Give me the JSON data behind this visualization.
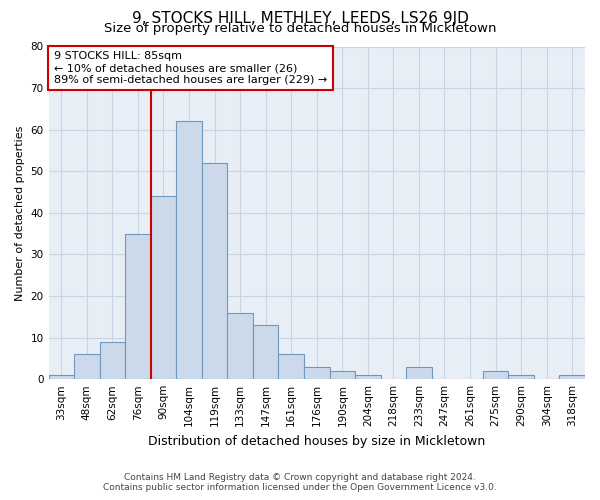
{
  "title": "9, STOCKS HILL, METHLEY, LEEDS, LS26 9JD",
  "subtitle": "Size of property relative to detached houses in Mickletown",
  "xlabel": "Distribution of detached houses by size in Mickletown",
  "ylabel": "Number of detached properties",
  "categories": [
    "33sqm",
    "48sqm",
    "62sqm",
    "76sqm",
    "90sqm",
    "104sqm",
    "119sqm",
    "133sqm",
    "147sqm",
    "161sqm",
    "176sqm",
    "190sqm",
    "204sqm",
    "218sqm",
    "233sqm",
    "247sqm",
    "261sqm",
    "275sqm",
    "290sqm",
    "304sqm",
    "318sqm"
  ],
  "values": [
    1,
    6,
    9,
    35,
    44,
    62,
    52,
    16,
    13,
    6,
    3,
    2,
    1,
    0,
    3,
    0,
    0,
    2,
    1,
    0,
    1
  ],
  "bar_color": "#ccd9ea",
  "bar_edge_color": "#7097bc",
  "red_line_color": "#cc0000",
  "annotation_box_edge": "#cc0000",
  "annotation_line1": "9 STOCKS HILL: 85sqm",
  "annotation_line2": "← 10% of detached houses are smaller (26)",
  "annotation_line3": "89% of semi-detached houses are larger (229) →",
  "ylim": [
    0,
    80
  ],
  "yticks": [
    0,
    10,
    20,
    30,
    40,
    50,
    60,
    70,
    80
  ],
  "grid_color": "#c8d4e4",
  "bg_color": "#e8eef6",
  "title_fontsize": 11,
  "subtitle_fontsize": 9.5,
  "xlabel_fontsize": 9,
  "ylabel_fontsize": 8,
  "tick_fontsize": 7.5,
  "footer1": "Contains HM Land Registry data © Crown copyright and database right 2024.",
  "footer2": "Contains public sector information licensed under the Open Government Licence v3.0."
}
